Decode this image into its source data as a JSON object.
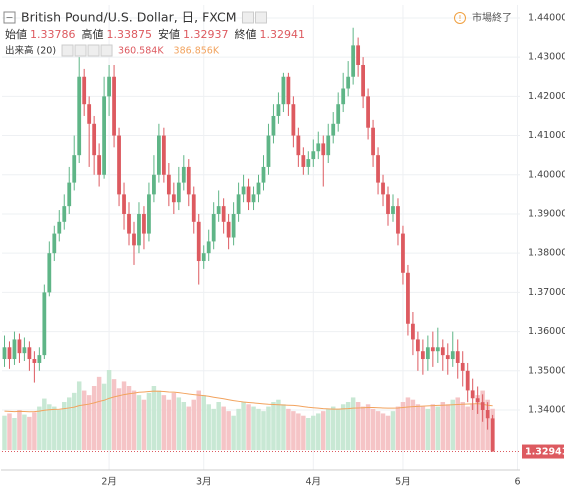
{
  "chart_data": {
    "type": "candlestick",
    "title": "British Pound/U.S. Dollar, 日, FXCM",
    "status": "市場終了",
    "legend_labels": [
      "始値",
      "高値",
      "安値",
      "終値"
    ],
    "up_color": "#5fb587",
    "down_color": "#dd5a60",
    "ylim": [
      1.3247,
      1.4433
    ],
    "yticks": [
      {
        "value": 1.34,
        "label": "1.34000"
      },
      {
        "value": 1.35,
        "label": "1.35000"
      },
      {
        "value": 1.36,
        "label": "1.36000"
      },
      {
        "value": 1.37,
        "label": "1.37000"
      },
      {
        "value": 1.38,
        "label": "1.38000"
      },
      {
        "value": 1.39,
        "label": "1.39000"
      },
      {
        "value": 1.4,
        "label": "1.40000"
      },
      {
        "value": 1.41,
        "label": "1.41000"
      },
      {
        "value": 1.42,
        "label": "1.42000"
      },
      {
        "value": 1.43,
        "label": "1.43000"
      },
      {
        "value": 1.44,
        "label": "1.44000"
      }
    ],
    "xlim": [
      -0.5,
      103.5
    ],
    "xticks": [
      {
        "value": 21,
        "label": "2月"
      },
      {
        "value": 40,
        "label": "3月"
      },
      {
        "value": 62,
        "label": "4月"
      },
      {
        "value": 80,
        "label": "5月"
      },
      {
        "value": 103,
        "label": "6"
      }
    ],
    "grid": true,
    "open": [
      1.353,
      1.356,
      1.353,
      1.358,
      1.3545,
      1.356,
      1.353,
      1.352,
      1.354,
      1.37,
      1.38,
      1.385,
      1.388,
      1.392,
      1.398,
      1.405,
      1.425,
      1.418,
      1.413,
      1.405,
      1.4,
      1.42,
      1.425,
      1.41,
      1.395,
      1.39,
      1.385,
      1.382,
      1.39,
      1.385,
      1.395,
      1.4,
      1.41,
      1.4,
      1.395,
      1.393,
      1.398,
      1.402,
      1.395,
      1.388,
      1.378,
      1.38,
      1.383,
      1.39,
      1.392,
      1.388,
      1.384,
      1.39,
      1.395,
      1.397,
      1.393,
      1.395,
      1.398,
      1.402,
      1.41,
      1.415,
      1.418,
      1.425,
      1.418,
      1.41,
      1.405,
      1.402,
      1.404,
      1.406,
      1.408,
      1.405,
      1.41,
      1.413,
      1.418,
      1.422,
      1.425,
      1.433,
      1.428,
      1.42,
      1.412,
      1.405,
      1.398,
      1.395,
      1.39,
      1.392,
      1.385,
      1.375,
      1.362,
      1.358,
      1.355,
      1.353,
      1.356,
      1.355,
      1.356,
      1.354,
      1.353,
      1.355,
      1.352,
      1.35,
      1.345,
      1.343,
      1.342,
      1.34,
      1.33786
    ],
    "high": [
      1.359,
      1.3575,
      1.36,
      1.3595,
      1.3585,
      1.3575,
      1.355,
      1.356,
      1.372,
      1.383,
      1.387,
      1.391,
      1.395,
      1.402,
      1.41,
      1.43,
      1.427,
      1.42,
      1.415,
      1.408,
      1.425,
      1.428,
      1.428,
      1.412,
      1.398,
      1.393,
      1.388,
      1.393,
      1.392,
      1.398,
      1.405,
      1.413,
      1.412,
      1.403,
      1.398,
      1.402,
      1.405,
      1.404,
      1.397,
      1.39,
      1.382,
      1.386,
      1.393,
      1.396,
      1.394,
      1.39,
      1.393,
      1.398,
      1.4,
      1.399,
      1.397,
      1.4,
      1.405,
      1.413,
      1.418,
      1.421,
      1.426,
      1.426,
      1.42,
      1.412,
      1.407,
      1.406,
      1.409,
      1.411,
      1.41,
      1.413,
      1.416,
      1.421,
      1.426,
      1.429,
      1.4375,
      1.435,
      1.43,
      1.422,
      1.414,
      1.407,
      1.4,
      1.397,
      1.395,
      1.394,
      1.387,
      1.377,
      1.365,
      1.36,
      1.358,
      1.359,
      1.36,
      1.361,
      1.358,
      1.357,
      1.36,
      1.358,
      1.355,
      1.352,
      1.348,
      1.346,
      1.344,
      1.342,
      1.33875
    ],
    "low": [
      1.351,
      1.3505,
      1.3515,
      1.352,
      1.3525,
      1.35,
      1.347,
      1.35,
      1.353,
      1.369,
      1.378,
      1.383,
      1.386,
      1.39,
      1.396,
      1.403,
      1.415,
      1.402,
      1.4,
      1.397,
      1.399,
      1.415,
      1.407,
      1.392,
      1.386,
      1.382,
      1.377,
      1.38,
      1.381,
      1.383,
      1.393,
      1.398,
      1.398,
      1.392,
      1.39,
      1.391,
      1.396,
      1.392,
      1.385,
      1.372,
      1.376,
      1.378,
      1.381,
      1.388,
      1.385,
      1.381,
      1.382,
      1.388,
      1.393,
      1.391,
      1.391,
      1.393,
      1.396,
      1.4,
      1.408,
      1.413,
      1.416,
      1.415,
      1.407,
      1.402,
      1.4,
      1.4,
      1.402,
      1.404,
      1.397,
      1.403,
      1.408,
      1.411,
      1.416,
      1.42,
      1.423,
      1.425,
      1.417,
      1.409,
      1.402,
      1.395,
      1.392,
      1.387,
      1.388,
      1.382,
      1.372,
      1.359,
      1.354,
      1.35,
      1.349,
      1.35,
      1.351,
      1.352,
      1.35,
      1.349,
      1.351,
      1.348,
      1.346,
      1.342,
      1.34,
      1.339,
      1.337,
      1.335,
      1.32937
    ],
    "close": [
      1.356,
      1.353,
      1.358,
      1.3545,
      1.356,
      1.353,
      1.352,
      1.354,
      1.37,
      1.38,
      1.385,
      1.388,
      1.392,
      1.398,
      1.405,
      1.425,
      1.418,
      1.413,
      1.405,
      1.4,
      1.42,
      1.425,
      1.41,
      1.395,
      1.39,
      1.385,
      1.382,
      1.39,
      1.385,
      1.395,
      1.4,
      1.41,
      1.4,
      1.395,
      1.393,
      1.398,
      1.402,
      1.395,
      1.388,
      1.378,
      1.38,
      1.383,
      1.39,
      1.392,
      1.388,
      1.384,
      1.39,
      1.395,
      1.397,
      1.393,
      1.395,
      1.398,
      1.402,
      1.41,
      1.415,
      1.418,
      1.425,
      1.418,
      1.41,
      1.405,
      1.402,
      1.404,
      1.406,
      1.408,
      1.405,
      1.41,
      1.413,
      1.418,
      1.422,
      1.425,
      1.433,
      1.428,
      1.42,
      1.412,
      1.405,
      1.398,
      1.395,
      1.39,
      1.392,
      1.385,
      1.375,
      1.362,
      1.358,
      1.355,
      1.353,
      1.356,
      1.355,
      1.356,
      1.354,
      1.353,
      1.355,
      1.352,
      1.35,
      1.345,
      1.343,
      1.342,
      1.34,
      1.3379,
      1.32941
    ],
    "volume": {
      "name": "出来高 (20)",
      "up_color": "#c8e8d4",
      "down_color": "#f5c4c6",
      "last_value_label": "360.584K",
      "values": [
        300,
        320,
        280,
        350,
        310,
        290,
        330,
        380,
        450,
        400,
        380,
        350,
        420,
        460,
        500,
        600,
        520,
        480,
        560,
        640,
        580,
        700,
        620,
        540,
        600,
        560,
        520,
        480,
        440,
        500,
        560,
        520,
        480,
        440,
        500,
        460,
        420,
        380,
        440,
        520,
        480,
        400,
        360,
        420,
        380,
        340,
        300,
        360,
        420,
        400,
        380,
        360,
        340,
        380,
        420,
        440,
        400,
        360,
        340,
        320,
        300,
        280,
        300,
        320,
        340,
        360,
        380,
        360,
        400,
        420,
        460,
        420,
        380,
        400,
        360,
        340,
        320,
        300,
        340,
        380,
        420,
        460,
        440,
        400,
        380,
        360,
        400,
        380,
        420,
        400,
        440,
        460,
        420,
        380,
        400,
        480,
        520,
        440,
        360.584
      ]
    },
    "volume_ma": {
      "color": "#f2a35e",
      "last_value_label": "386.856K",
      "values": [
        340,
        338,
        336,
        338,
        337,
        335,
        336,
        340,
        348,
        352,
        355,
        357,
        362,
        368,
        375,
        388,
        395,
        402,
        412,
        425,
        435,
        452,
        465,
        475,
        485,
        492,
        498,
        505,
        508,
        512,
        515,
        514,
        512,
        508,
        506,
        502,
        496,
        490,
        485,
        480,
        476,
        470,
        462,
        455,
        448,
        440,
        432,
        426,
        420,
        416,
        412,
        408,
        404,
        400,
        398,
        396,
        394,
        392,
        390,
        386,
        380,
        374,
        370,
        366,
        362,
        360,
        358,
        358,
        360,
        362,
        366,
        368,
        370,
        372,
        372,
        370,
        368,
        366,
        366,
        368,
        372,
        376,
        380,
        382,
        384,
        386,
        388,
        390,
        392,
        394,
        396,
        398,
        400,
        402,
        404,
        406,
        400,
        392,
        386.856
      ]
    }
  }
}
